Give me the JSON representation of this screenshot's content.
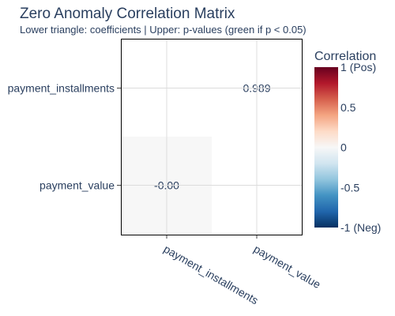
{
  "chart_data": {
    "type": "heatmap",
    "title": "Zero Anomaly Correlation Matrix",
    "subtitle": "Lower triangle: coefficients | Upper: p-values (green if p < 0.05)",
    "variables": [
      "payment_installments",
      "payment_value"
    ],
    "cells": [
      {
        "row": "payment_installments",
        "col": "payment_installments",
        "value": null,
        "label": "",
        "color": "#ffffff"
      },
      {
        "row": "payment_installments",
        "col": "payment_value",
        "value": 0.989,
        "label": "0.989",
        "color": "#ffffff"
      },
      {
        "row": "payment_value",
        "col": "payment_installments",
        "value": -0.0,
        "label": "-0.00",
        "color": "#f7f7f7"
      },
      {
        "row": "payment_value",
        "col": "payment_value",
        "value": null,
        "label": "",
        "color": "#ffffff"
      }
    ],
    "colorbar": {
      "title": "Correlation",
      "range": [
        -1,
        1
      ],
      "ticks": [
        {
          "value": 1,
          "label": "1 (Pos)"
        },
        {
          "value": 0.5,
          "label": "0.5"
        },
        {
          "value": 0,
          "label": "0"
        },
        {
          "value": -0.5,
          "label": "-0.5"
        },
        {
          "value": -1,
          "label": "-1 (Neg)"
        }
      ],
      "colorscale": [
        "#053061",
        "#2166ac",
        "#4393c3",
        "#92c5de",
        "#d1e5f0",
        "#f7f7f7",
        "#fddbc7",
        "#f4a582",
        "#d6604d",
        "#b2182b",
        "#67001f"
      ]
    }
  }
}
